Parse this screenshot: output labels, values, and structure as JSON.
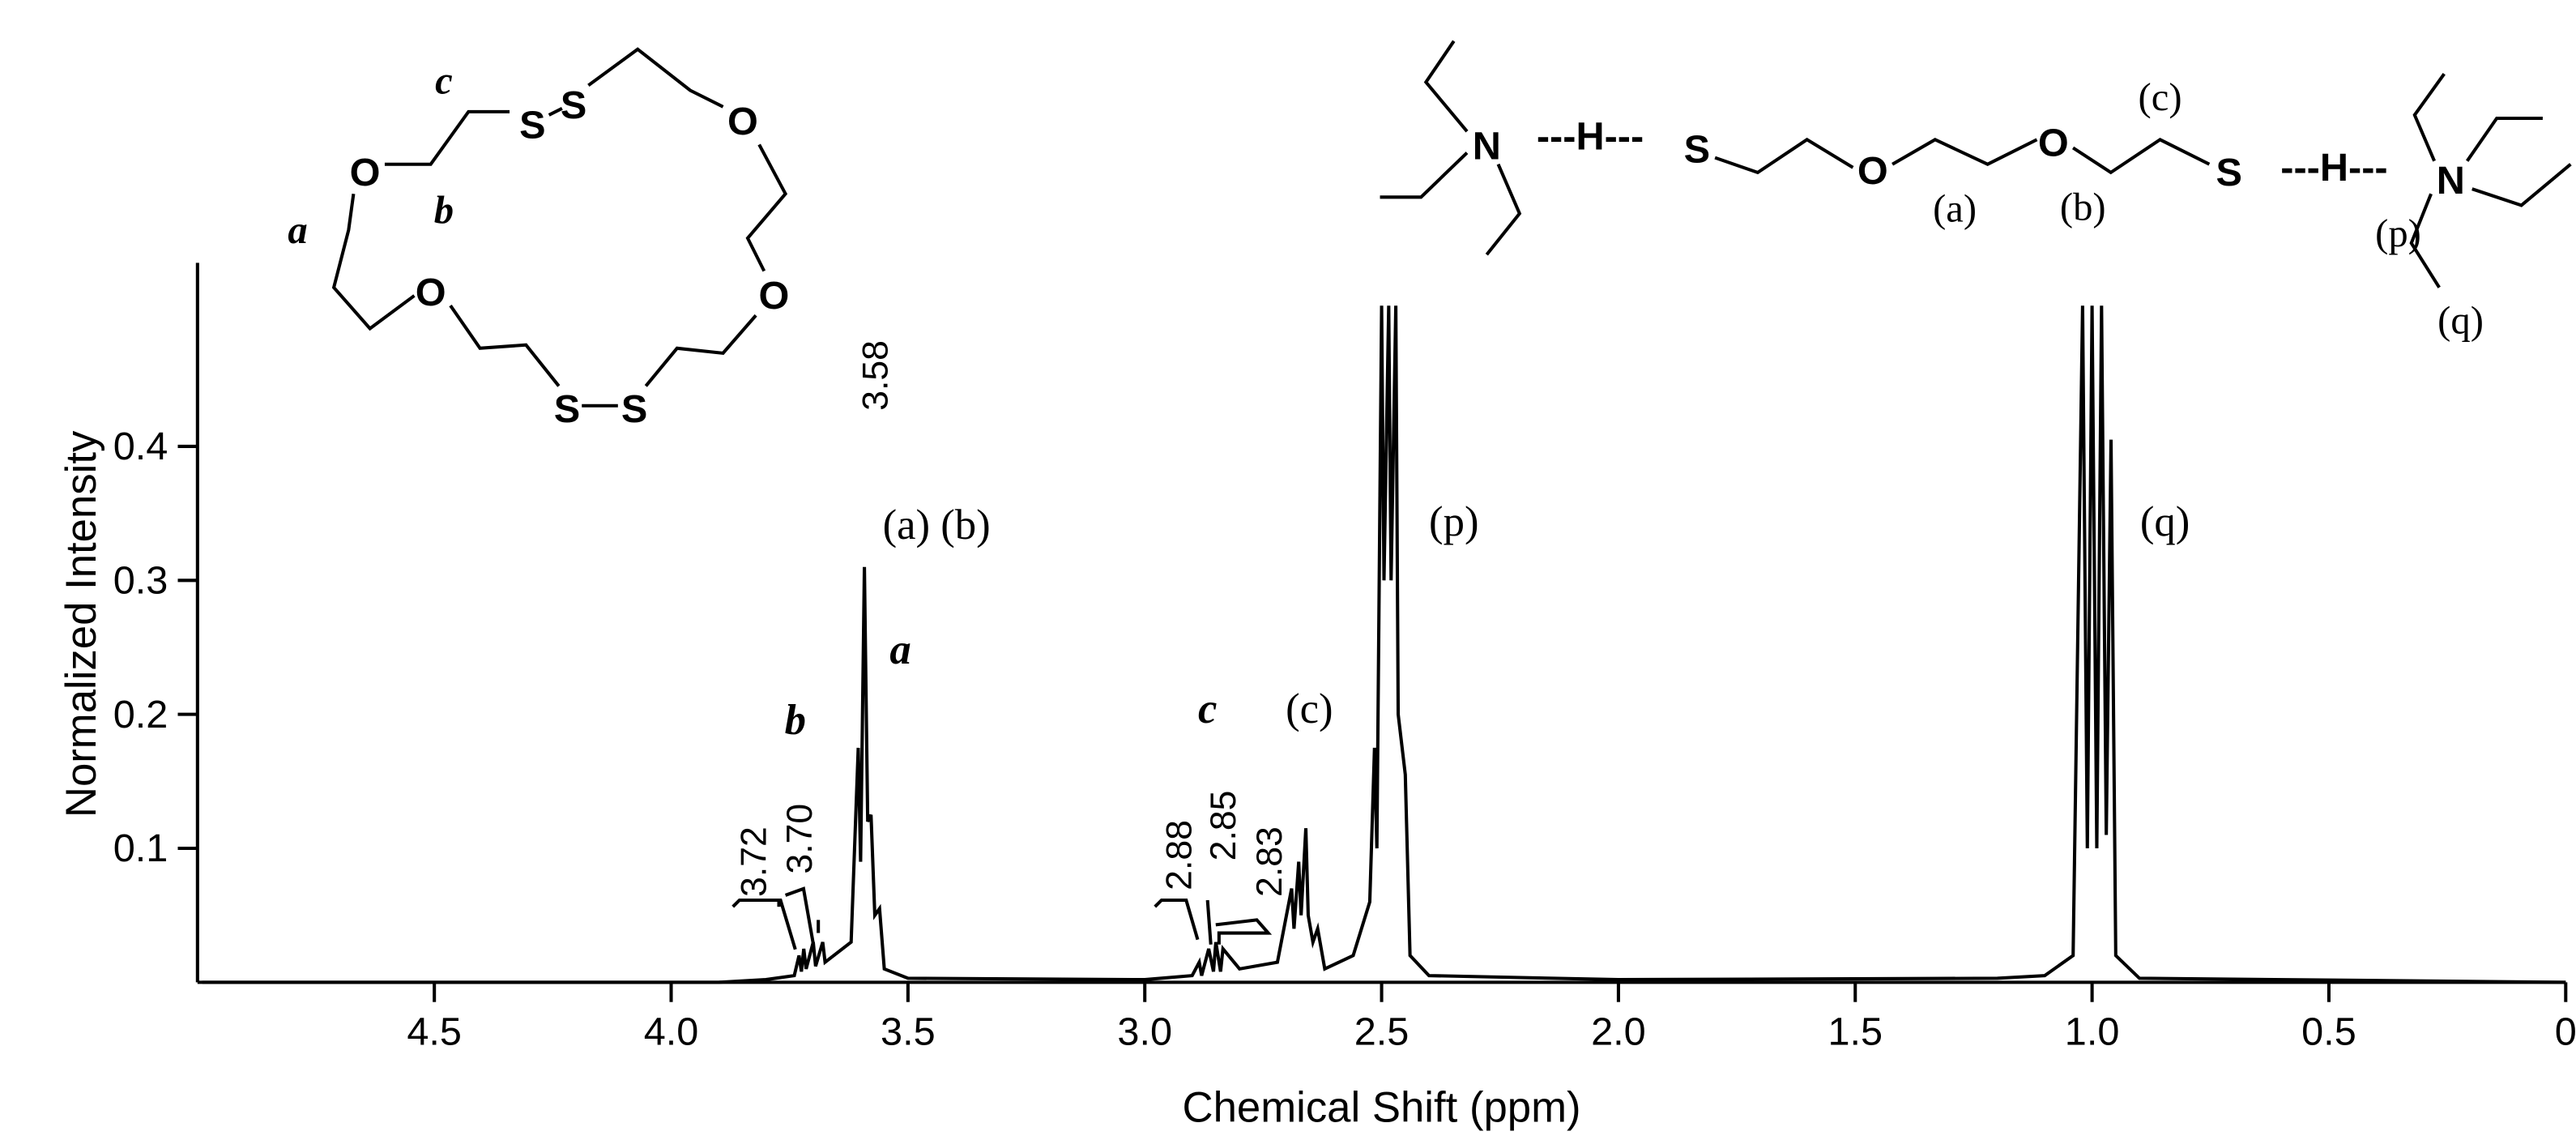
{
  "chart_data": {
    "type": "line",
    "xlabel": "Chemical Shift (ppm)",
    "ylabel": "Normalized Intensity",
    "xlim": [
      5,
      0
    ],
    "ylim": [
      0,
      0.537
    ],
    "xticks": [
      4.5,
      {
        "value": 4,
        "label": "4.0"
      },
      3.5,
      {
        "value": 3,
        "label": "3.0"
      },
      2.5,
      {
        "value": 2,
        "label": "2.0"
      },
      1.5,
      {
        "value": 1,
        "label": "1.0"
      },
      0.5,
      0
    ],
    "yticks": [
      0.1,
      0.2,
      0.3,
      0.4
    ],
    "color": "#000000",
    "x": [
      4.99,
      3.9,
      3.8,
      3.74,
      3.73,
      3.725,
      3.72,
      3.715,
      3.7,
      3.695,
      3.68,
      3.675,
      3.62,
      3.605,
      3.6,
      3.592,
      3.585,
      3.578,
      3.57,
      3.56,
      3.55,
      3.5,
      3.0,
      2.9,
      2.885,
      2.88,
      2.865,
      2.855,
      2.85,
      2.84,
      2.835,
      2.8,
      2.72,
      2.69,
      2.685,
      2.675,
      2.67,
      2.66,
      2.655,
      2.645,
      2.635,
      2.62,
      2.56,
      2.525,
      2.515,
      2.51,
      2.5,
      2.495,
      2.485,
      2.48,
      2.47,
      2.465,
      2.45,
      2.44,
      2.4,
      2.0,
      1.2,
      1.1,
      1.04,
      1.02,
      1.01,
      1.0,
      0.99,
      0.98,
      0.97,
      0.96,
      0.95,
      0.9,
      0.0
    ],
    "values": [
      0.0,
      0.0,
      0.002,
      0.005,
      0.02,
      0.008,
      0.025,
      0.01,
      0.03,
      0.012,
      0.03,
      0.015,
      0.03,
      0.175,
      0.09,
      0.31,
      0.12,
      0.125,
      0.05,
      0.055,
      0.01,
      0.003,
      0.002,
      0.005,
      0.015,
      0.005,
      0.025,
      0.008,
      0.03,
      0.008,
      0.025,
      0.01,
      0.015,
      0.07,
      0.04,
      0.09,
      0.05,
      0.115,
      0.05,
      0.03,
      0.04,
      0.01,
      0.02,
      0.06,
      0.175,
      0.1,
      0.505,
      0.3,
      0.505,
      0.3,
      0.505,
      0.2,
      0.155,
      0.02,
      0.005,
      0.002,
      0.003,
      0.005,
      0.02,
      0.505,
      0.1,
      0.505,
      0.1,
      0.505,
      0.11,
      0.405,
      0.02,
      0.003,
      0.0
    ],
    "annotations": [
      "(a) (b)",
      "a",
      "b",
      "c",
      "(c)",
      "(p)",
      "(q)",
      "3.72",
      "3.70",
      "3.58",
      "2.88",
      "2.85",
      "2.83"
    ]
  },
  "structures": {
    "crown": {
      "atoms": [
        "S",
        "S",
        "O",
        "O",
        "O",
        "O",
        "S",
        "S"
      ],
      "labels": [
        "c",
        "a",
        "b"
      ]
    },
    "complex": {
      "atoms": [
        "N",
        "---H---",
        "S",
        "O",
        "O",
        "S",
        "---H---",
        "N"
      ],
      "labels": [
        "(a)",
        "(b)",
        "(c)",
        "(p)",
        "(q)"
      ]
    }
  }
}
